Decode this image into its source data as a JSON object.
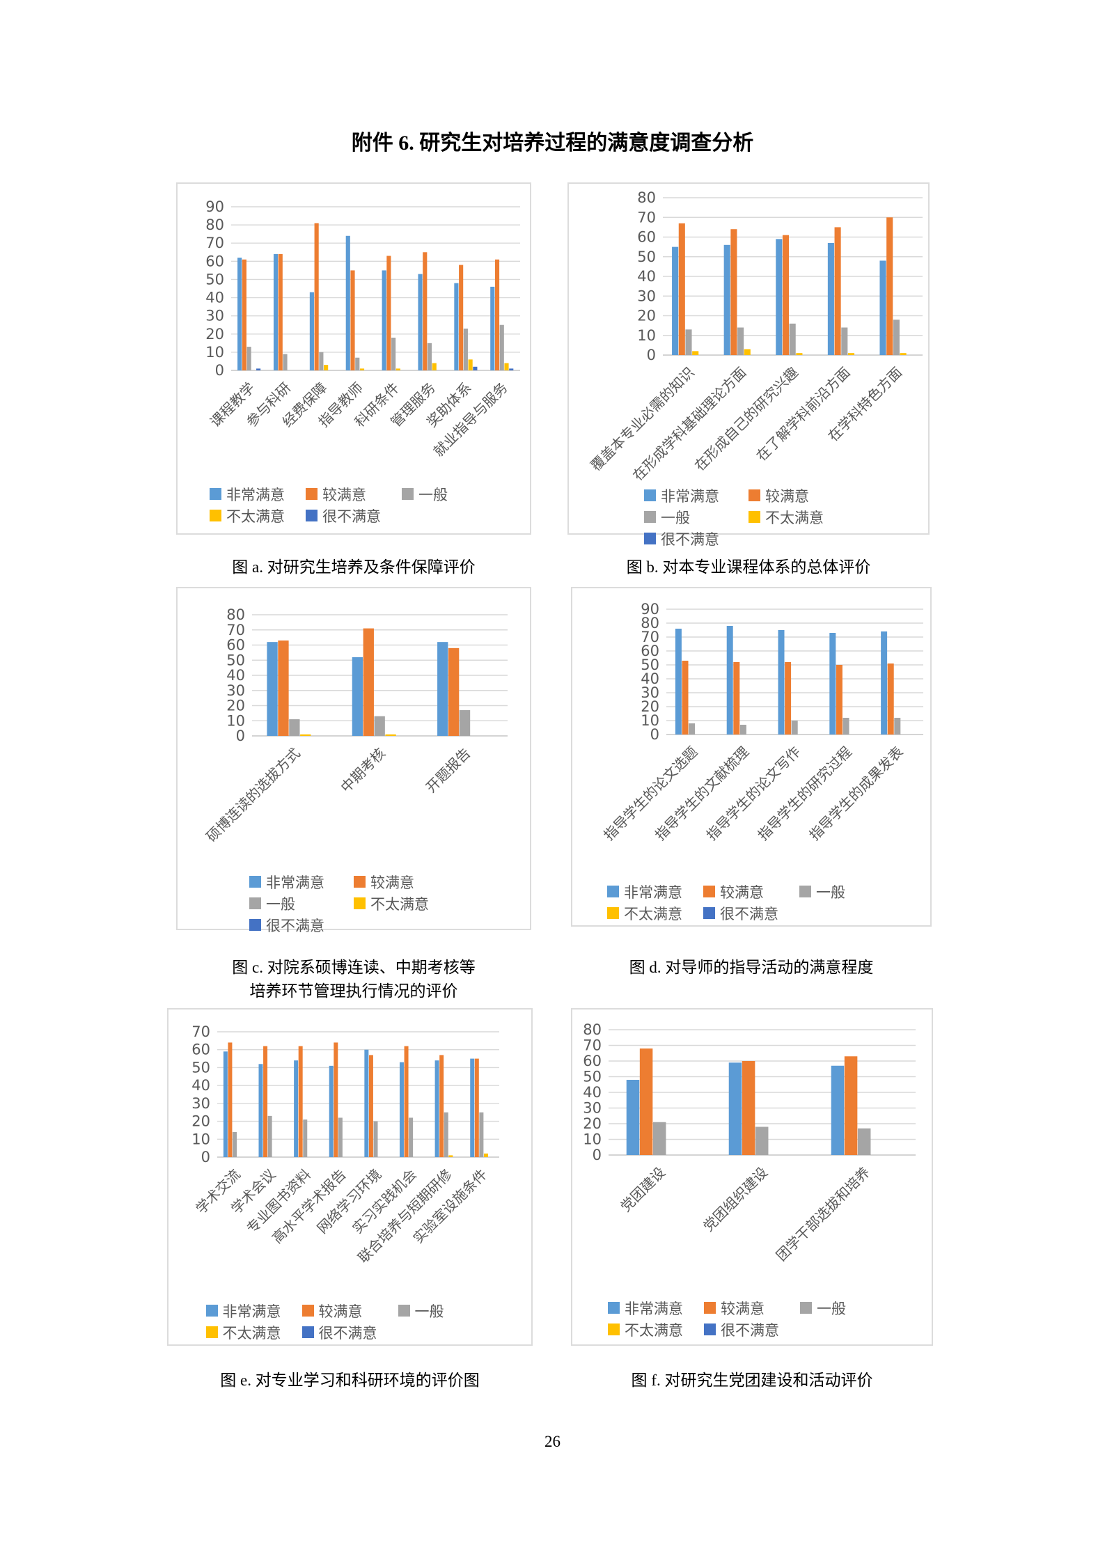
{
  "page": {
    "title": "附件 6. 研究生对培养过程的满意度调查分析",
    "page_number": "26"
  },
  "legend_labels": [
    "非常满意",
    "较满意",
    "一般",
    "不太满意",
    "很不满意"
  ],
  "series_colors": [
    "#5B9BD5",
    "#ED7D31",
    "#A5A5A5",
    "#FFC000",
    "#4472C4"
  ],
  "grid_color": "#D9D9D9",
  "axis_text_color": "#595959",
  "chart_data": [
    {
      "id": "a",
      "type": "bar",
      "caption_lines": [
        "图 a. 对研究生培养及条件保障评价"
      ],
      "ylim": [
        0,
        90
      ],
      "ystep": 10,
      "grid": true,
      "legend_position": "bottom",
      "legend_columns": 3,
      "categories": [
        "课程教学",
        "参与科研",
        "经费保障",
        "指导教师",
        "科研条件",
        "管理服务",
        "奖助体系",
        "就业指导与服务"
      ],
      "series": [
        {
          "name": "非常满意",
          "values": [
            62,
            64,
            43,
            74,
            55,
            53,
            48,
            46
          ]
        },
        {
          "name": "较满意",
          "values": [
            61,
            64,
            81,
            55,
            63,
            65,
            58,
            61
          ]
        },
        {
          "name": "一般",
          "values": [
            13,
            9,
            10,
            7,
            18,
            15,
            23,
            25
          ]
        },
        {
          "name": "不太满意",
          "values": [
            0,
            0,
            3,
            1,
            1,
            4,
            6,
            4
          ]
        },
        {
          "name": "很不满意",
          "values": [
            1,
            0,
            0,
            0,
            0,
            0,
            2,
            1
          ]
        }
      ]
    },
    {
      "id": "b",
      "type": "bar",
      "caption_lines": [
        "图 b. 对本专业课程体系的总体评价"
      ],
      "ylim": [
        0,
        80
      ],
      "ystep": 10,
      "grid": true,
      "legend_position": "bottom",
      "legend_columns": 2,
      "categories": [
        "覆盖本专业必需的知识",
        "在形成学科基础理论方面",
        "在形成自己的研究兴趣",
        "在了解学科前沿方面",
        "在学科特色方面"
      ],
      "series": [
        {
          "name": "非常满意",
          "values": [
            55,
            56,
            59,
            57,
            48
          ]
        },
        {
          "name": "较满意",
          "values": [
            67,
            64,
            61,
            65,
            70
          ]
        },
        {
          "name": "一般",
          "values": [
            13,
            14,
            16,
            14,
            18
          ]
        },
        {
          "name": "不太满意",
          "values": [
            2,
            3,
            1,
            1,
            1
          ]
        },
        {
          "name": "很不满意",
          "values": [
            0,
            0,
            0,
            0,
            0
          ]
        }
      ]
    },
    {
      "id": "c",
      "type": "bar",
      "caption_lines": [
        "图 c. 对院系硕博连读、中期考核等",
        "培养环节管理执行情况的评价"
      ],
      "ylim": [
        0,
        80
      ],
      "ystep": 10,
      "grid": true,
      "legend_position": "bottom",
      "legend_columns": 2,
      "categories": [
        "硕博连读的选拔方式",
        "中期考核",
        "开题报告"
      ],
      "series": [
        {
          "name": "非常满意",
          "values": [
            62,
            52,
            62
          ]
        },
        {
          "name": "较满意",
          "values": [
            63,
            71,
            58
          ]
        },
        {
          "name": "一般",
          "values": [
            11,
            13,
            17
          ]
        },
        {
          "name": "不太满意",
          "values": [
            1,
            1,
            0
          ]
        },
        {
          "name": "很不满意",
          "values": [
            0,
            0,
            0
          ]
        }
      ]
    },
    {
      "id": "d",
      "type": "bar",
      "caption_lines": [
        "图 d. 对导师的指导活动的满意程度"
      ],
      "ylim": [
        0,
        90
      ],
      "ystep": 10,
      "grid": true,
      "legend_position": "bottom",
      "legend_columns": 3,
      "categories": [
        "指导学生的论文选题",
        "指导学生的文献梳理",
        "指导学生的论文写作",
        "指导学生的研究过程",
        "指导学生的成果发表"
      ],
      "series": [
        {
          "name": "非常满意",
          "values": [
            76,
            78,
            75,
            73,
            74
          ]
        },
        {
          "name": "较满意",
          "values": [
            53,
            52,
            52,
            50,
            51
          ]
        },
        {
          "name": "一般",
          "values": [
            8,
            7,
            10,
            12,
            12
          ]
        },
        {
          "name": "不太满意",
          "values": [
            0,
            0,
            0,
            0,
            0
          ]
        },
        {
          "name": "很不满意",
          "values": [
            0,
            0,
            0,
            0,
            0
          ]
        }
      ]
    },
    {
      "id": "e",
      "type": "bar",
      "caption_lines": [
        "图 e. 对专业学习和科研环境的评价图"
      ],
      "ylim": [
        0,
        70
      ],
      "ystep": 10,
      "grid": true,
      "legend_position": "bottom",
      "legend_columns": 3,
      "categories": [
        "学术交流",
        "学术会议",
        "专业图书资料",
        "高水平学术报告",
        "网络学习环境",
        "实习实践机会",
        "联合培养与短期研修",
        "实验室设施条件"
      ],
      "series": [
        {
          "name": "非常满意",
          "values": [
            59,
            52,
            54,
            51,
            60,
            53,
            54,
            55
          ]
        },
        {
          "name": "较满意",
          "values": [
            64,
            62,
            62,
            64,
            57,
            62,
            57,
            55
          ]
        },
        {
          "name": "一般",
          "values": [
            14,
            23,
            21,
            22,
            20,
            22,
            25,
            25
          ]
        },
        {
          "name": "不太满意",
          "values": [
            0,
            0,
            0,
            0,
            0,
            0,
            1,
            2
          ]
        },
        {
          "name": "很不满意",
          "values": [
            0,
            0,
            0,
            0,
            0,
            0,
            0,
            0
          ]
        }
      ]
    },
    {
      "id": "f",
      "type": "bar",
      "caption_lines": [
        "图 f. 对研究生党团建设和活动评价"
      ],
      "ylim": [
        0,
        80
      ],
      "ystep": 10,
      "grid": true,
      "legend_position": "bottom",
      "legend_columns": 3,
      "categories": [
        "党团建设",
        "党团组织建设",
        "团学干部选拔和培养"
      ],
      "series": [
        {
          "name": "非常满意",
          "values": [
            48,
            59,
            57
          ]
        },
        {
          "name": "较满意",
          "values": [
            68,
            60,
            63
          ]
        },
        {
          "name": "一般",
          "values": [
            21,
            18,
            17
          ]
        },
        {
          "name": "不太满意",
          "values": [
            0,
            0,
            0
          ]
        },
        {
          "name": "很不满意",
          "values": [
            0,
            0,
            0
          ]
        }
      ]
    }
  ]
}
